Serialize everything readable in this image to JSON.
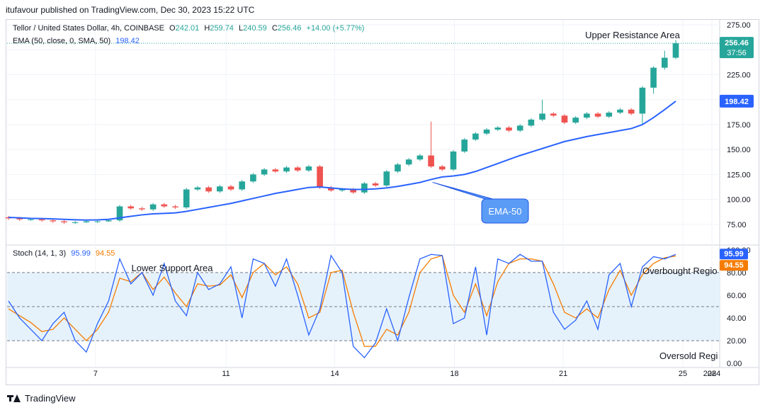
{
  "header": {
    "publisher_line": "itufavour published on TradingView.com, Dec 30, 2023 15:22 UTC"
  },
  "legend": {
    "symbol": "Tellor / United States Dollar, 4h, COINBASE",
    "open_label": "O",
    "open": "242.01",
    "high_label": "H",
    "high": "259.74",
    "low_label": "L",
    "low": "240.59",
    "close_label": "C",
    "close": "256.46",
    "change": "+14.00 (+5.77%)",
    "ema_label": "EMA (50, close, 0, SMA, 50)",
    "ema_value": "198.42",
    "stoch_label": "Stoch (14, 1, 3)",
    "stoch_k": "95.99",
    "stoch_d": "94.55"
  },
  "annotations": {
    "upper_resistance": "Upper Resistance Area",
    "lower_support": "Lower Support Area",
    "overbought": "Overbought Regio",
    "oversold": "Oversold Regi",
    "ema_callout": "EMA-50"
  },
  "footer": {
    "brand": "TradingView"
  },
  "colors": {
    "up": "#26a69a",
    "down": "#ef5350",
    "ema": "#2962ff",
    "stoch_k": "#2962ff",
    "stoch_d": "#f57c00",
    "band": "#e6f2fb"
  },
  "chart_data": [
    {
      "type": "candlestick",
      "title": "Tellor / United States Dollar, 4h, COINBASE",
      "x_ticks": [
        "7",
        "11",
        "14",
        "18",
        "21",
        "25",
        "28",
        "2024"
      ],
      "y_ticks": [
        "75.00",
        "100.00",
        "125.00",
        "150.00",
        "175.00",
        "200.00",
        "225.00",
        "250.00",
        "275.00"
      ],
      "ylim": [
        55,
        280
      ],
      "price_tags": [
        {
          "value": "256.46",
          "sub": "37:56",
          "color": "#26a69a"
        },
        {
          "value": "198.42",
          "color": "#2962ff"
        }
      ],
      "series": [
        {
          "name": "EMA (50, close, 0, SMA, 50)",
          "type": "line",
          "values": [
            82,
            81.5,
            81,
            80.8,
            80.5,
            80,
            79.6,
            79.3,
            79.5,
            80,
            81.5,
            83,
            84.5,
            85.5,
            86,
            86.5,
            88,
            90,
            92,
            94,
            96,
            98.5,
            101,
            103.5,
            106,
            108,
            110,
            112,
            112.5,
            111.5,
            110.5,
            110,
            110,
            110.5,
            111.5,
            113,
            115,
            117,
            120,
            122.5,
            123.5,
            125,
            128,
            132,
            136,
            140,
            144,
            147.5,
            151,
            154.5,
            158,
            160.5,
            163,
            165,
            167,
            169,
            171,
            175,
            182,
            190,
            198.42
          ]
        },
        {
          "name": "OHLC",
          "type": "candles",
          "values": [
            [
              82,
              81,
              83.5,
              79.5
            ],
            [
              81,
              80,
              82.5,
              78.5
            ],
            [
              80,
              80,
              81.5,
              78.5
            ],
            [
              80,
              79,
              81.5,
              77.5
            ],
            [
              79,
              78,
              80.5,
              76.5
            ],
            [
              78,
              77,
              79.5,
              75.5
            ],
            [
              77,
              77,
              78.5,
              75.5
            ],
            [
              77,
              78,
              79.5,
              76.5
            ],
            [
              78,
              78,
              79.5,
              76.5
            ],
            [
              78,
              79,
              80.5,
              77.5
            ],
            [
              79,
              93,
              94.5,
              77.5
            ],
            [
              93,
              91,
              94.5,
              89.5
            ],
            [
              91,
              90,
              92.5,
              88.5
            ],
            [
              90,
              95,
              96.5,
              88.5
            ],
            [
              95,
              93,
              96.5,
              91.5
            ],
            [
              93,
              92,
              94.5,
              90.5
            ],
            [
              92,
              110,
              111.5,
              90.5
            ],
            [
              110,
              112,
              113.5,
              108.5
            ],
            [
              112,
              108,
              113.5,
              106.5
            ],
            [
              108,
              113,
              114.5,
              106.5
            ],
            [
              113,
              110,
              114.5,
              108.5
            ],
            [
              110,
              118,
              119.5,
              108.5
            ],
            [
              118,
              125,
              126.5,
              116.5
            ],
            [
              125,
              130,
              131.5,
              123.5
            ],
            [
              130,
              128,
              131.5,
              126.5
            ],
            [
              128,
              132,
              133.5,
              126.5
            ],
            [
              132,
              129,
              133.5,
              127.5
            ],
            [
              129,
              133,
              134.5,
              127.5
            ],
            [
              133,
              112,
              134.5,
              110.5
            ],
            [
              112,
              109,
              113.5,
              107.5
            ],
            [
              109,
              110,
              111.5,
              107.5
            ],
            [
              110,
              107,
              111.5,
              105.5
            ],
            [
              107,
              116,
              117.5,
              105.5
            ],
            [
              116,
              114,
              117.5,
              112.5
            ],
            [
              114,
              128,
              129.5,
              112.5
            ],
            [
              128,
              135,
              136.5,
              126.5
            ],
            [
              135,
              140,
              141.5,
              133.5
            ],
            [
              140,
              144,
              145.5,
              138.5
            ],
            [
              144,
              133,
              178,
              131.5
            ],
            [
              133,
              130,
              134.5,
              128.5
            ],
            [
              130,
              148,
              149.5,
              128.5
            ],
            [
              148,
              160,
              161.5,
              146.5
            ],
            [
              160,
              166,
              167.5,
              158.5
            ],
            [
              166,
              170,
              171.5,
              164.5
            ],
            [
              170,
              172,
              173.5,
              168.5
            ],
            [
              172,
              169,
              173.5,
              167.5
            ],
            [
              169,
              174,
              175.5,
              167.5
            ],
            [
              174,
              180,
              181.5,
              172.5
            ],
            [
              180,
              186,
              200,
              178.5
            ],
            [
              186,
              184,
              187.5,
              182.5
            ],
            [
              184,
              177,
              185.5,
              175.5
            ],
            [
              177,
              182,
              183.5,
              175.5
            ],
            [
              182,
              186,
              187.5,
              180.5
            ],
            [
              186,
              183,
              187.5,
              181.5
            ],
            [
              183,
              187,
              188.5,
              181.5
            ],
            [
              187,
              190,
              191.5,
              185.5
            ],
            [
              190,
              186,
              191.5,
              184.5
            ],
            [
              186,
              212,
              213.5,
              175
            ],
            [
              212,
              232,
              233.5,
              206
            ],
            [
              232,
              242,
              249,
              230
            ],
            [
              242,
              256.46,
              259.74,
              240.59
            ]
          ]
        }
      ]
    },
    {
      "type": "line",
      "title": "Stoch (14, 1, 3)",
      "y_ticks": [
        "0.00",
        "20.00",
        "40.00",
        "60.00",
        "80.00",
        "100.00"
      ],
      "ylim": [
        -3,
        103
      ],
      "bands": [
        80,
        50,
        20
      ],
      "series": [
        {
          "name": "%K",
          "values": [
            55,
            40,
            30,
            20,
            35,
            45,
            20,
            10,
            35,
            55,
            92,
            70,
            80,
            60,
            88,
            55,
            42,
            80,
            65,
            70,
            85,
            40,
            92,
            88,
            68,
            92,
            60,
            25,
            48,
            95,
            80,
            15,
            5,
            18,
            48,
            20,
            58,
            92,
            96,
            95,
            35,
            40,
            85,
            25,
            92,
            88,
            96,
            90,
            90,
            45,
            30,
            38,
            55,
            30,
            78,
            88,
            50,
            85,
            94,
            92,
            95.99
          ]
        },
        {
          "name": "%D",
          "values": [
            48,
            42,
            36,
            28,
            30,
            40,
            30,
            20,
            30,
            45,
            75,
            72,
            80,
            65,
            76,
            62,
            50,
            70,
            68,
            69,
            78,
            58,
            80,
            88,
            78,
            85,
            70,
            40,
            45,
            80,
            82,
            45,
            15,
            15,
            30,
            25,
            45,
            80,
            92,
            95,
            60,
            45,
            70,
            42,
            72,
            88,
            92,
            92,
            90,
            70,
            45,
            40,
            48,
            40,
            65,
            82,
            60,
            78,
            88,
            93,
            94.55
          ]
        }
      ]
    }
  ]
}
